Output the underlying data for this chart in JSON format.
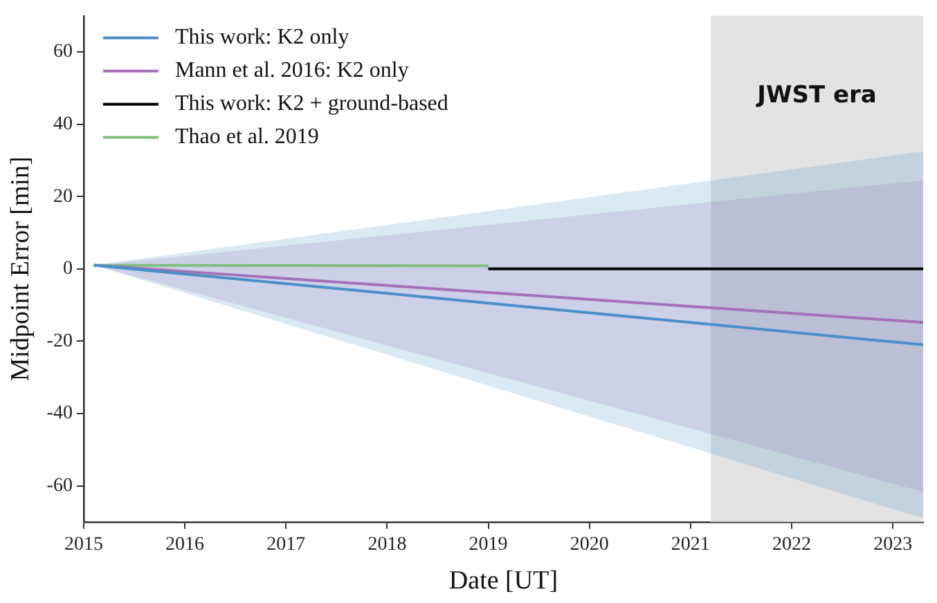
{
  "chart_data": {
    "type": "line",
    "xlabel": "Date [UT]",
    "ylabel": "Midpoint Error [min]",
    "xlim": [
      2015,
      2023.3
    ],
    "xticks": [
      2015,
      2016,
      2017,
      2018,
      2019,
      2020,
      2021,
      2022,
      2023
    ],
    "ylim": [
      -70,
      70
    ],
    "yticks": [
      -60,
      -40,
      -20,
      0,
      20,
      40,
      60
    ],
    "grid": false,
    "legend": "top left",
    "line_style": "solid",
    "marker": "none",
    "bands": [
      {
        "axis": "x",
        "from": 2021.2,
        "to": 2023.3,
        "label": "JWST era",
        "color": "#e3e3e3"
      }
    ],
    "series": [
      {
        "name": "This work: K2 only",
        "color": "#4a8fc8",
        "x": [
          2015.1,
          2023.3
        ],
        "values": [
          1,
          -21
        ],
        "lower": [
          1,
          -69
        ],
        "upper": [
          1,
          32.5
        ]
      },
      {
        "name": "Mann et al. 2016: K2 only",
        "color": "#a56fba",
        "x": [
          2015.1,
          2023.3
        ],
        "values": [
          1,
          -14.8
        ],
        "lower": [
          1,
          -61.7
        ],
        "upper": [
          1,
          24.5
        ]
      },
      {
        "name": "This work: K2 + ground-based",
        "color": "#000000",
        "x": [
          2019.0,
          2023.3
        ],
        "values": [
          0,
          0
        ]
      },
      {
        "name": "Thao et al. 2019",
        "color": "#7fbf7f",
        "x": [
          2015.1,
          2019.0
        ],
        "values": [
          1,
          0.8
        ]
      }
    ]
  }
}
